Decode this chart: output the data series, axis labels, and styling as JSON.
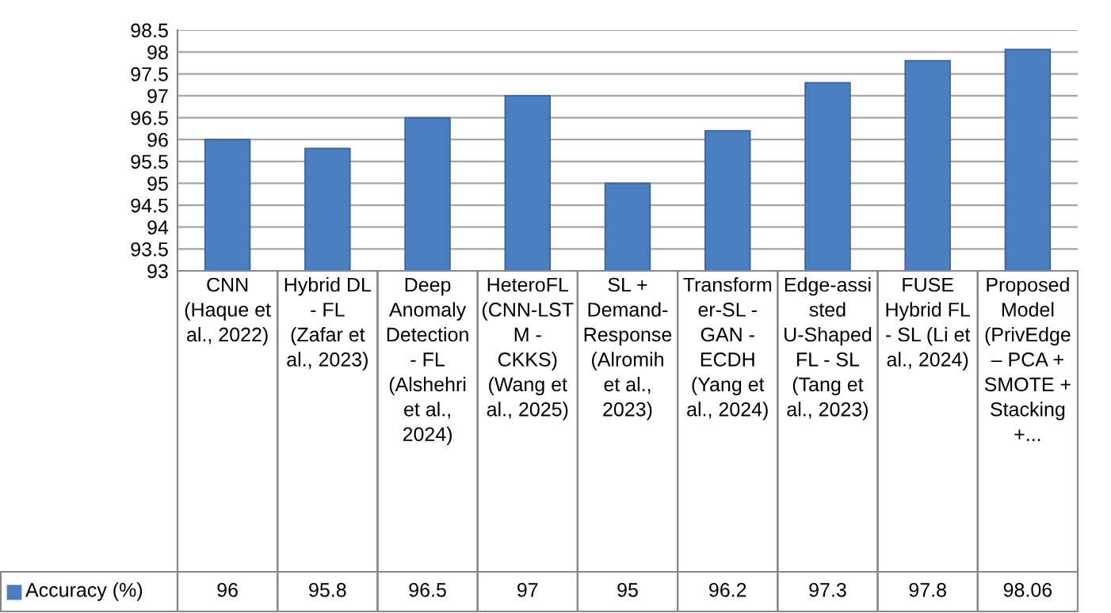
{
  "chart_data": {
    "type": "bar",
    "categories": [
      "CNN (Haque et al., 2022)",
      "Hybrid DL - FL (Zafar et al., 2023)",
      "Deep Anomaly Detection - FL (Alshehri et al., 2024)",
      "HeteroFL (CNN-LSTM - CKKS) (Wang et al., 2025)",
      "SL + Demand-Response (Alromih et al., 2023)",
      "Transformer-SL - GAN - ECDH (Yang et al., 2024)",
      "Edge-assisted U-Shaped FL - SL (Tang et al., 2023)",
      "FUSE Hybrid FL - SL (Li et al., 2024)",
      "Proposed Model (PrivEdge – PCA + SMOTE + Stacking +..."
    ],
    "series": [
      {
        "name": "Accuracy (%)",
        "color": "#4a7ebf",
        "values": [
          96,
          95.8,
          96.5,
          97,
          95,
          96.2,
          97.3,
          97.8,
          98.06
        ]
      }
    ],
    "ylim": [
      93,
      98.5
    ],
    "yticks": [
      93,
      93.5,
      94,
      94.5,
      95,
      95.5,
      96,
      96.5,
      97,
      97.5,
      98,
      98.5
    ],
    "grid": "y",
    "legend": "bottom",
    "data_labels": true
  }
}
